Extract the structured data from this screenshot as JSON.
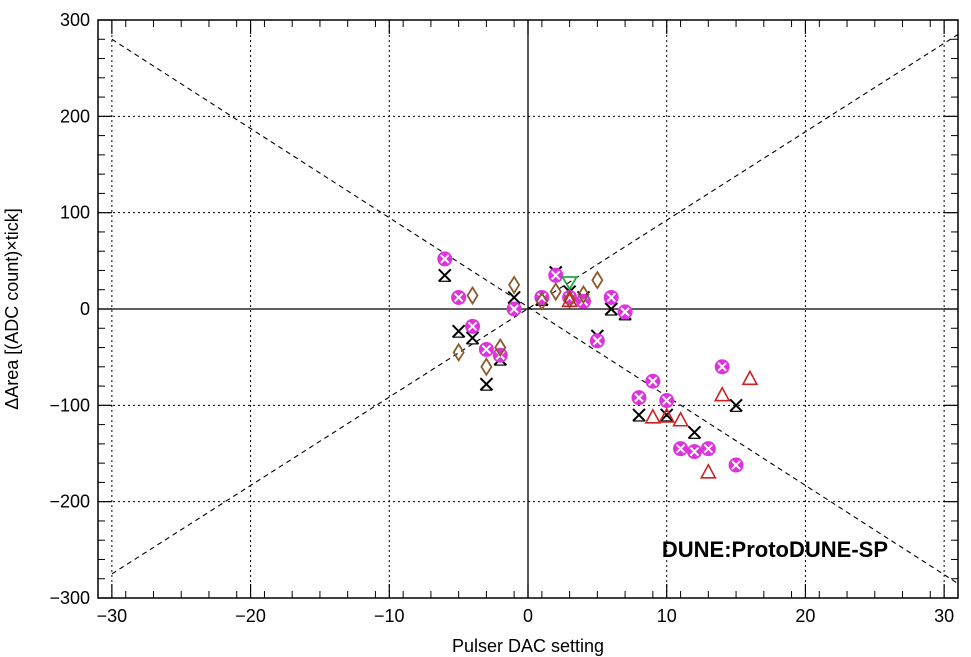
{
  "chart_data": {
    "type": "scatter",
    "title": "",
    "xlabel": "Pulser DAC setting",
    "ylabel": "ΔArea [(ADC count)×tick]",
    "xlim": [
      -31,
      31
    ],
    "ylim": [
      -300,
      300
    ],
    "x_ticks": [
      -30,
      -20,
      -10,
      0,
      10,
      20,
      30
    ],
    "y_ticks": [
      -300,
      -200,
      -100,
      0,
      100,
      200,
      300
    ],
    "x_tick_labels": [
      "−30",
      "−20",
      "−10",
      "0",
      "10",
      "20",
      "30"
    ],
    "y_tick_labels": [
      "−300",
      "−200",
      "−100",
      "0",
      "100",
      "200",
      "300"
    ],
    "grid": true,
    "watermark": "DUNE:ProtoDUNE-SP",
    "reference_lines": [
      {
        "x": [
          -30,
          31
        ],
        "y": [
          -275,
          285
        ],
        "style": "dashed"
      },
      {
        "x": [
          -30,
          31
        ],
        "y": [
          280,
          -285
        ],
        "style": "dashed"
      }
    ],
    "series": [
      {
        "marker": "x-cross",
        "color": "#000000",
        "points": [
          [
            -6,
            35
          ],
          [
            -5,
            -23
          ],
          [
            -4,
            -30
          ],
          [
            -3,
            -78
          ],
          [
            -2,
            -52
          ],
          [
            -1,
            12
          ],
          [
            1,
            10
          ],
          [
            2,
            38
          ],
          [
            3,
            18
          ],
          [
            4,
            12
          ],
          [
            5,
            -28
          ],
          [
            6,
            0
          ],
          [
            7,
            -5
          ],
          [
            8,
            -110
          ],
          [
            10,
            -110
          ],
          [
            12,
            -128
          ],
          [
            15,
            -100
          ]
        ]
      },
      {
        "marker": "cross-circle",
        "color": "#dd33dd",
        "points": [
          [
            -6,
            52
          ],
          [
            -5,
            12
          ],
          [
            -4,
            -18
          ],
          [
            -3,
            -42
          ],
          [
            -2,
            -48
          ],
          [
            -1,
            0
          ],
          [
            1,
            12
          ],
          [
            2,
            35
          ],
          [
            3,
            12
          ],
          [
            4,
            8
          ],
          [
            5,
            -33
          ],
          [
            6,
            12
          ],
          [
            7,
            -3
          ],
          [
            8,
            -92
          ],
          [
            9,
            -75
          ],
          [
            10,
            -95
          ],
          [
            11,
            -145
          ],
          [
            12,
            -148
          ],
          [
            13,
            -145
          ],
          [
            14,
            -60
          ],
          [
            15,
            -162
          ]
        ]
      },
      {
        "marker": "diamond",
        "color": "#8b5a2b",
        "points": [
          [
            -5,
            -45
          ],
          [
            -4,
            14
          ],
          [
            -3,
            -60
          ],
          [
            -2,
            -40
          ],
          [
            -1,
            25
          ],
          [
            1,
            8
          ],
          [
            2,
            18
          ],
          [
            3,
            10
          ],
          [
            4,
            15
          ],
          [
            5,
            30
          ]
        ]
      },
      {
        "marker": "triangle",
        "color": "#cc2222",
        "points": [
          [
            3,
            8
          ],
          [
            9,
            -113
          ],
          [
            10,
            -112
          ],
          [
            11,
            -116
          ],
          [
            13,
            -170
          ],
          [
            14,
            -90
          ],
          [
            16,
            -73
          ]
        ]
      },
      {
        "marker": "triangle-down",
        "color": "#22aa44",
        "points": [
          [
            3,
            28
          ]
        ]
      }
    ]
  }
}
